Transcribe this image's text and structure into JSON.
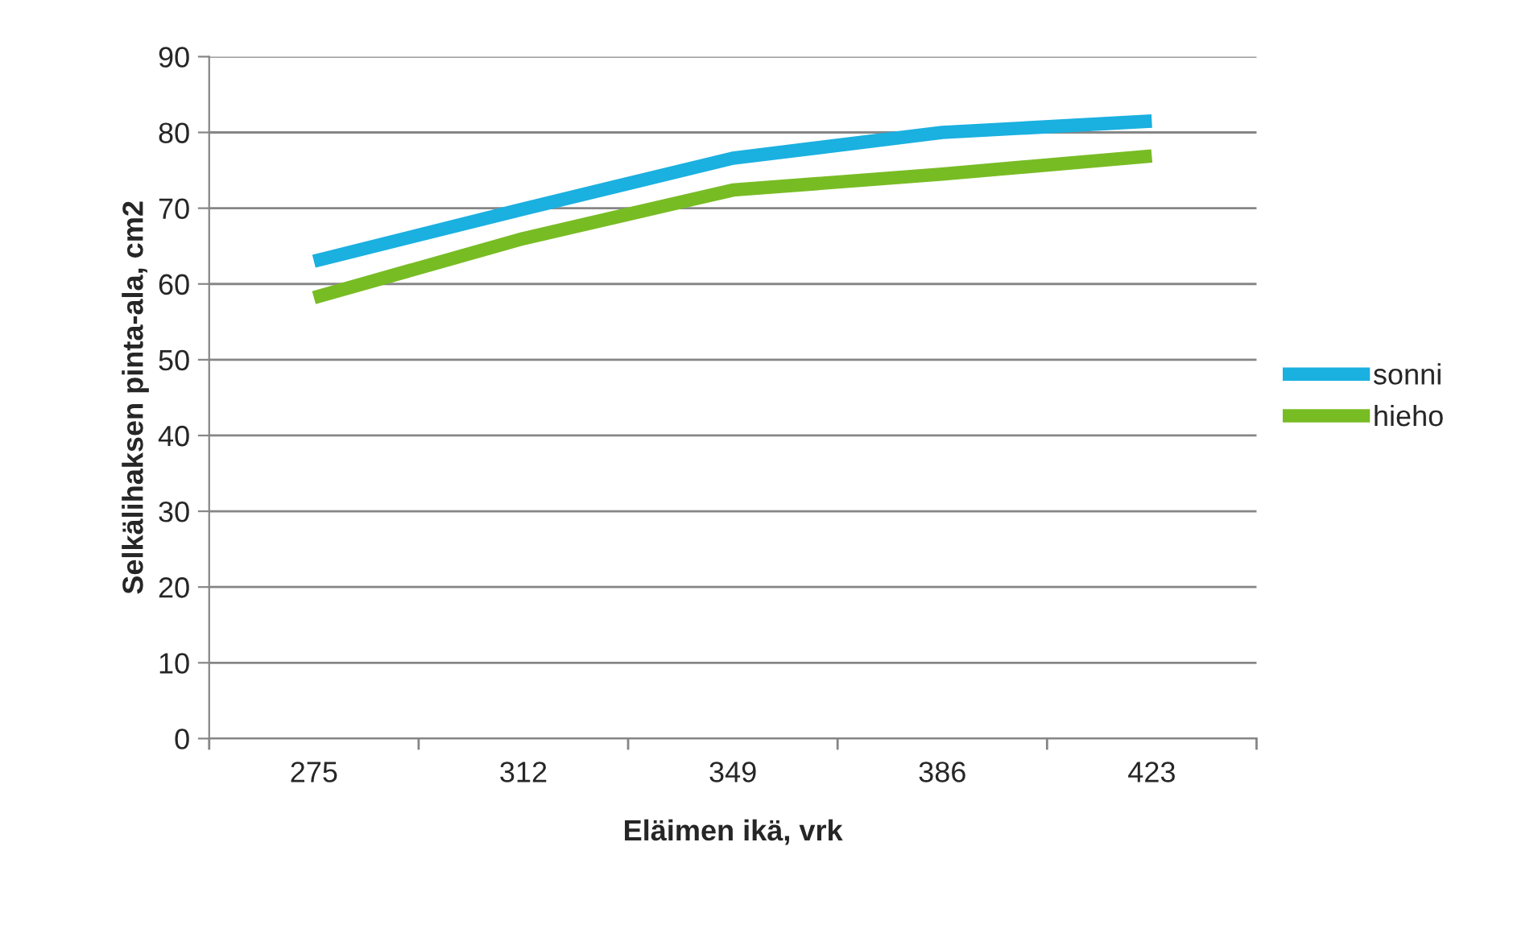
{
  "chart_data": {
    "type": "line",
    "xlabel": "Eläimen ikä, vrk",
    "ylabel": "Selkälihaksen pinta-ala, cm2",
    "categories": [
      "275",
      "312",
      "349",
      "386",
      "423"
    ],
    "series": [
      {
        "name": "sonni",
        "color": "#1ab0e0",
        "values": [
          63.0,
          69.9,
          76.6,
          80.0,
          81.5
        ]
      },
      {
        "name": "hieho",
        "color": "#78bc24",
        "values": [
          58.2,
          66.0,
          72.4,
          74.5,
          76.9
        ]
      }
    ],
    "ylim": [
      0,
      90
    ],
    "yticks": [
      0,
      10,
      20,
      30,
      40,
      50,
      60,
      70,
      80,
      90
    ],
    "grid": "y",
    "legend": "right",
    "marker": "none",
    "line_style": "solid"
  }
}
